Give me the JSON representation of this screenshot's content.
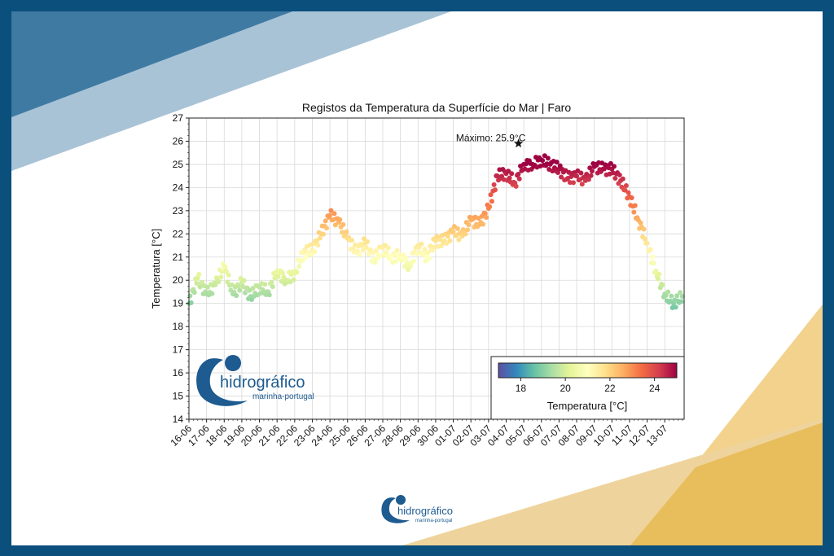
{
  "brand": {
    "name": "hidrográfico",
    "tagline": "marinha-portugal"
  },
  "colors": {
    "frame": "#0b4f7c",
    "brand_blue": "#1d5b90",
    "accent_gold": "#e8b84a"
  },
  "chart_data": {
    "type": "scatter",
    "title": "Registos da Temperatura da Superfície do Mar | Faro",
    "xlabel": "",
    "ylabel": "Temperatura [°C]",
    "ylim": [
      14,
      27
    ],
    "yticks": [
      14,
      15,
      16,
      17,
      18,
      19,
      20,
      21,
      22,
      23,
      24,
      25,
      26,
      27
    ],
    "x_tick_labels": [
      "16-06",
      "17-06",
      "18-06",
      "19-06",
      "20-06",
      "21-06",
      "22-06",
      "23-06",
      "24-06",
      "25-06",
      "26-06",
      "27-06",
      "28-06",
      "29-06",
      "30-06",
      "01-07",
      "02-07",
      "03-07",
      "04-07",
      "05-07",
      "06-07",
      "07-07",
      "08-07",
      "09-07",
      "10-07",
      "11-07",
      "12-07",
      "13-07"
    ],
    "grid": true,
    "colormap": "Spectral_r",
    "colorbar": {
      "label": "Temperatura [°C]",
      "range": [
        17,
        25
      ],
      "ticks": [
        18,
        20,
        22,
        24
      ],
      "placement": "bottom-right"
    },
    "annotation": {
      "text": "Máximo: 25.9°C",
      "x": 18.7,
      "y": 25.9
    },
    "series": [
      {
        "x": [
          0,
          0.5,
          1,
          1.5,
          2,
          2.5,
          3,
          3.5,
          4,
          4.5,
          5,
          5.5,
          6,
          6.5,
          7,
          7.5,
          8,
          8.5,
          9,
          9.5,
          10,
          10.5,
          11,
          11.5,
          12,
          12.5,
          13,
          13.5,
          14,
          14.5,
          15,
          15.5,
          16,
          16.5,
          17,
          17.5,
          18,
          18.5,
          19,
          19.5,
          20,
          20.5,
          21,
          21.5,
          22,
          22.5,
          23,
          23.5,
          24,
          24.5,
          25,
          25.5,
          26,
          26.5,
          27,
          27.5,
          28
        ],
        "y": [
          19.0,
          20.1,
          19.4,
          19.8,
          20.6,
          19.4,
          19.9,
          19.3,
          19.7,
          19.5,
          20.4,
          20.0,
          20.3,
          21.2,
          21.3,
          22.0,
          22.8,
          22.5,
          21.8,
          21.2,
          21.6,
          20.9,
          21.4,
          21.0,
          21.1,
          20.6,
          21.5,
          21.0,
          21.7,
          21.7,
          22.1,
          21.9,
          22.6,
          22.4,
          23.1,
          24.5,
          24.6,
          24.2,
          25.0,
          25.0,
          25.2,
          25.0,
          24.8,
          24.4,
          24.5,
          24.3,
          24.9,
          24.8,
          24.8,
          24.3,
          23.6,
          22.6,
          21.6,
          20.4,
          19.4,
          19.0,
          19.3
        ]
      }
    ]
  }
}
